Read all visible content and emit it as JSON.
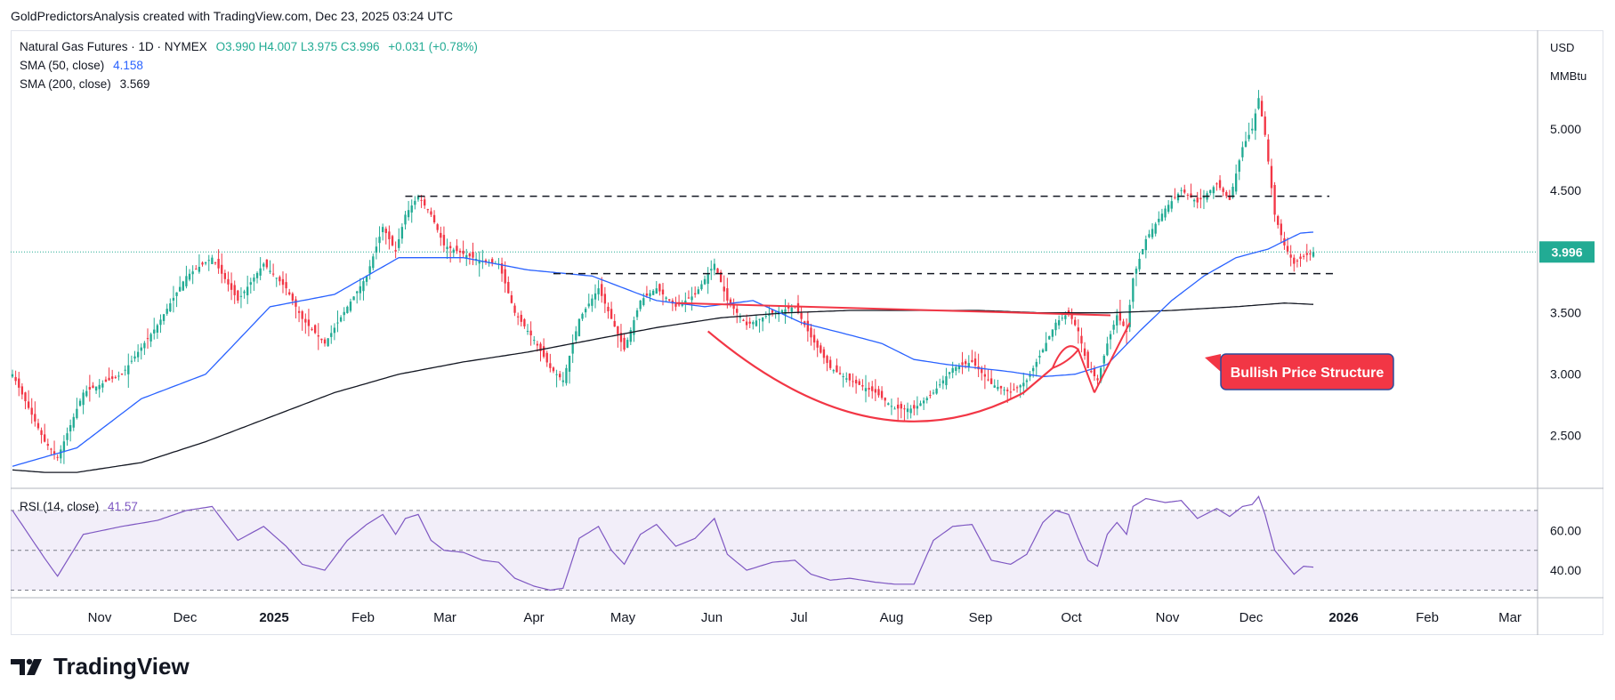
{
  "header": {
    "text": "GoldPredictorsAnalysis created with TradingView.com, Dec 23, 2025 03:24 UTC"
  },
  "legend": {
    "symbol": "Natural Gas Futures · 1D · NYMEX",
    "ohlc": "O3.990  H4.007  L3.975  C3.996",
    "change": "+0.031 (+0.78%)",
    "sma50_label": "SMA (50, close)",
    "sma50_value": "4.158",
    "sma200_label": "SMA (200, close)",
    "sma200_value": "3.569",
    "rsi_label": "RSI (14, close)",
    "rsi_value": "41.57"
  },
  "currency": {
    "line1": "USD",
    "line2": "MMBtu"
  },
  "last_price": "3.996",
  "annotation": "Bullish Price Structure",
  "brand": "TradingView",
  "colors": {
    "up": "#22ab94",
    "down": "#f23645",
    "sma50": "#2962ff",
    "sma200": "#131722",
    "rsi": "#7e57c2",
    "pattern": "#f23645",
    "tag_bg": "#f23645",
    "last_price": "#22ab94"
  },
  "chart_data": {
    "type": "candlestick",
    "title": "Natural Gas Futures · 1D · NYMEX",
    "price_axis": {
      "ticks": [
        "2.500",
        "3.000",
        "3.500",
        "4.000",
        "4.500",
        "5.000"
      ],
      "range": [
        2.15,
        5.6
      ]
    },
    "rsi_axis": {
      "ticks": [
        "40.00",
        "60.00"
      ],
      "range": [
        28,
        78
      ],
      "bands": [
        30,
        50,
        70
      ]
    },
    "time_axis": {
      "labels": [
        "Nov",
        "Dec",
        "2025",
        "Feb",
        "Mar",
        "Apr",
        "May",
        "Jun",
        "Jul",
        "Aug",
        "Sep",
        "Oct",
        "Nov",
        "Dec",
        "2026",
        "Feb",
        "Mar"
      ]
    },
    "price_waypoints": [
      [
        0,
        3.0
      ],
      [
        10,
        2.45
      ],
      [
        14,
        2.32
      ],
      [
        22,
        2.85
      ],
      [
        34,
        3.0
      ],
      [
        45,
        3.4
      ],
      [
        54,
        3.8
      ],
      [
        62,
        3.95
      ],
      [
        70,
        3.6
      ],
      [
        78,
        3.9
      ],
      [
        85,
        3.7
      ],
      [
        90,
        3.45
      ],
      [
        97,
        3.25
      ],
      [
        104,
        3.55
      ],
      [
        110,
        3.8
      ],
      [
        115,
        4.2
      ],
      [
        119,
        4.0
      ],
      [
        122,
        4.3
      ],
      [
        126,
        4.45
      ],
      [
        130,
        4.3
      ],
      [
        134,
        4.05
      ],
      [
        140,
        3.98
      ],
      [
        146,
        3.92
      ],
      [
        151,
        3.9
      ],
      [
        156,
        3.5
      ],
      [
        162,
        3.28
      ],
      [
        167,
        3.05
      ],
      [
        171,
        2.95
      ],
      [
        176,
        3.45
      ],
      [
        182,
        3.7
      ],
      [
        186,
        3.45
      ],
      [
        190,
        3.2
      ],
      [
        195,
        3.6
      ],
      [
        200,
        3.7
      ],
      [
        206,
        3.55
      ],
      [
        212,
        3.65
      ],
      [
        218,
        3.9
      ],
      [
        222,
        3.6
      ],
      [
        228,
        3.4
      ],
      [
        236,
        3.5
      ],
      [
        243,
        3.55
      ],
      [
        248,
        3.3
      ],
      [
        254,
        3.05
      ],
      [
        260,
        2.95
      ],
      [
        268,
        2.85
      ],
      [
        274,
        2.72
      ],
      [
        280,
        2.72
      ],
      [
        286,
        2.85
      ],
      [
        292,
        3.05
      ],
      [
        298,
        3.1
      ],
      [
        304,
        2.92
      ],
      [
        310,
        2.85
      ],
      [
        315,
        2.95
      ],
      [
        320,
        3.2
      ],
      [
        324,
        3.42
      ],
      [
        328,
        3.5
      ],
      [
        331,
        3.35
      ],
      [
        334,
        3.05
      ],
      [
        337,
        2.95
      ],
      [
        340,
        3.25
      ],
      [
        343,
        3.48
      ],
      [
        346,
        3.35
      ],
      [
        348,
        3.78
      ],
      [
        352,
        4.1
      ],
      [
        358,
        4.35
      ],
      [
        363,
        4.5
      ],
      [
        368,
        4.4
      ],
      [
        374,
        4.55
      ],
      [
        378,
        4.42
      ],
      [
        382,
        4.85
      ],
      [
        385,
        5.0
      ],
      [
        387,
        5.25
      ],
      [
        389,
        4.95
      ],
      [
        392,
        4.3
      ],
      [
        395,
        4.05
      ],
      [
        398,
        3.9
      ],
      [
        401,
        3.96
      ],
      [
        404,
        3.996
      ]
    ],
    "rsi_waypoints": [
      [
        0,
        70
      ],
      [
        10,
        46
      ],
      [
        14,
        37
      ],
      [
        22,
        58
      ],
      [
        34,
        62
      ],
      [
        45,
        65
      ],
      [
        54,
        70
      ],
      [
        62,
        72
      ],
      [
        70,
        55
      ],
      [
        78,
        62
      ],
      [
        85,
        52
      ],
      [
        90,
        43
      ],
      [
        97,
        40
      ],
      [
        104,
        55
      ],
      [
        110,
        63
      ],
      [
        115,
        68
      ],
      [
        119,
        58
      ],
      [
        122,
        66
      ],
      [
        126,
        68
      ],
      [
        130,
        55
      ],
      [
        134,
        50
      ],
      [
        140,
        49
      ],
      [
        146,
        45
      ],
      [
        151,
        44
      ],
      [
        156,
        36
      ],
      [
        162,
        32
      ],
      [
        167,
        30
      ],
      [
        171,
        31
      ],
      [
        176,
        56
      ],
      [
        182,
        62
      ],
      [
        186,
        50
      ],
      [
        190,
        43
      ],
      [
        195,
        58
      ],
      [
        200,
        63
      ],
      [
        206,
        52
      ],
      [
        212,
        56
      ],
      [
        218,
        66
      ],
      [
        222,
        48
      ],
      [
        228,
        40
      ],
      [
        236,
        44
      ],
      [
        243,
        45
      ],
      [
        248,
        38
      ],
      [
        254,
        35
      ],
      [
        260,
        36
      ],
      [
        268,
        34
      ],
      [
        274,
        33
      ],
      [
        280,
        33
      ],
      [
        286,
        55
      ],
      [
        292,
        62
      ],
      [
        298,
        63
      ],
      [
        304,
        45
      ],
      [
        310,
        43
      ],
      [
        315,
        48
      ],
      [
        320,
        64
      ],
      [
        324,
        70
      ],
      [
        328,
        68
      ],
      [
        331,
        56
      ],
      [
        334,
        45
      ],
      [
        337,
        42
      ],
      [
        340,
        58
      ],
      [
        343,
        64
      ],
      [
        346,
        58
      ],
      [
        348,
        72
      ],
      [
        352,
        76
      ],
      [
        358,
        74
      ],
      [
        363,
        75
      ],
      [
        368,
        66
      ],
      [
        374,
        71
      ],
      [
        378,
        67
      ],
      [
        382,
        72
      ],
      [
        385,
        73
      ],
      [
        387,
        77
      ],
      [
        389,
        68
      ],
      [
        392,
        50
      ],
      [
        395,
        44
      ],
      [
        398,
        38
      ],
      [
        401,
        42
      ],
      [
        404,
        41.57
      ]
    ],
    "sma50_waypoints": [
      [
        0,
        2.25
      ],
      [
        20,
        2.4
      ],
      [
        40,
        2.8
      ],
      [
        60,
        3.0
      ],
      [
        80,
        3.55
      ],
      [
        100,
        3.65
      ],
      [
        120,
        3.95
      ],
      [
        140,
        3.95
      ],
      [
        160,
        3.85
      ],
      [
        180,
        3.8
      ],
      [
        200,
        3.6
      ],
      [
        215,
        3.55
      ],
      [
        230,
        3.6
      ],
      [
        245,
        3.42
      ],
      [
        260,
        3.32
      ],
      [
        270,
        3.25
      ],
      [
        280,
        3.12
      ],
      [
        290,
        3.08
      ],
      [
        300,
        3.05
      ],
      [
        310,
        3.02
      ],
      [
        320,
        2.98
      ],
      [
        330,
        3.0
      ],
      [
        340,
        3.08
      ],
      [
        350,
        3.35
      ],
      [
        360,
        3.6
      ],
      [
        370,
        3.8
      ],
      [
        380,
        3.95
      ],
      [
        390,
        4.02
      ],
      [
        400,
        4.15
      ],
      [
        404,
        4.158
      ]
    ],
    "sma200_waypoints": [
      [
        0,
        2.22
      ],
      [
        10,
        2.2
      ],
      [
        20,
        2.2
      ],
      [
        40,
        2.28
      ],
      [
        60,
        2.45
      ],
      [
        80,
        2.65
      ],
      [
        100,
        2.85
      ],
      [
        120,
        3.0
      ],
      [
        140,
        3.1
      ],
      [
        160,
        3.18
      ],
      [
        180,
        3.28
      ],
      [
        200,
        3.38
      ],
      [
        220,
        3.46
      ],
      [
        240,
        3.5
      ],
      [
        260,
        3.52
      ],
      [
        280,
        3.52
      ],
      [
        300,
        3.52
      ],
      [
        320,
        3.5
      ],
      [
        340,
        3.5
      ],
      [
        360,
        3.52
      ],
      [
        380,
        3.55
      ],
      [
        395,
        3.58
      ],
      [
        404,
        3.569
      ]
    ],
    "resistance_levels": [
      4.45,
      3.82
    ],
    "sma50_last": 4.158,
    "sma200_last": 3.569,
    "rsi_last": 41.57
  }
}
